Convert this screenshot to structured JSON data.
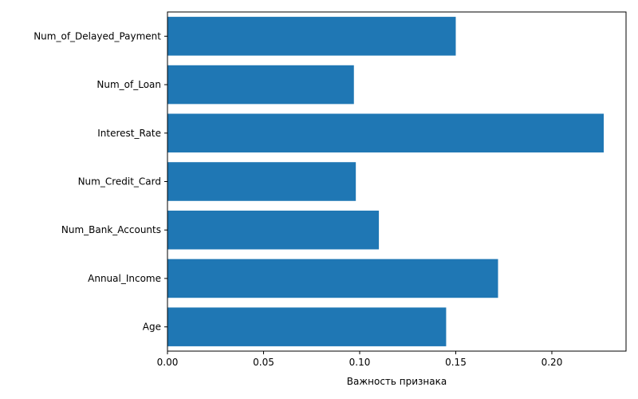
{
  "chart_data": {
    "type": "bar",
    "orientation": "horizontal",
    "title": "",
    "xlabel": "Важность признака",
    "ylabel": "",
    "categories": [
      "Age",
      "Annual_Income",
      "Num_Bank_Accounts",
      "Num_Credit_Card",
      "Interest_Rate",
      "Num_of_Loan",
      "Num_of_Delayed_Payment"
    ],
    "values": [
      0.145,
      0.172,
      0.11,
      0.098,
      0.227,
      0.097,
      0.15
    ],
    "xlim": [
      0,
      0.2386
    ],
    "xticks": [
      0.0,
      0.05,
      0.1,
      0.15,
      0.2
    ],
    "xtick_labels": [
      "0.00",
      "0.05",
      "0.10",
      "0.15",
      "0.20"
    ],
    "bar_color": "#1f77b4",
    "grid": false,
    "legend": "none"
  }
}
